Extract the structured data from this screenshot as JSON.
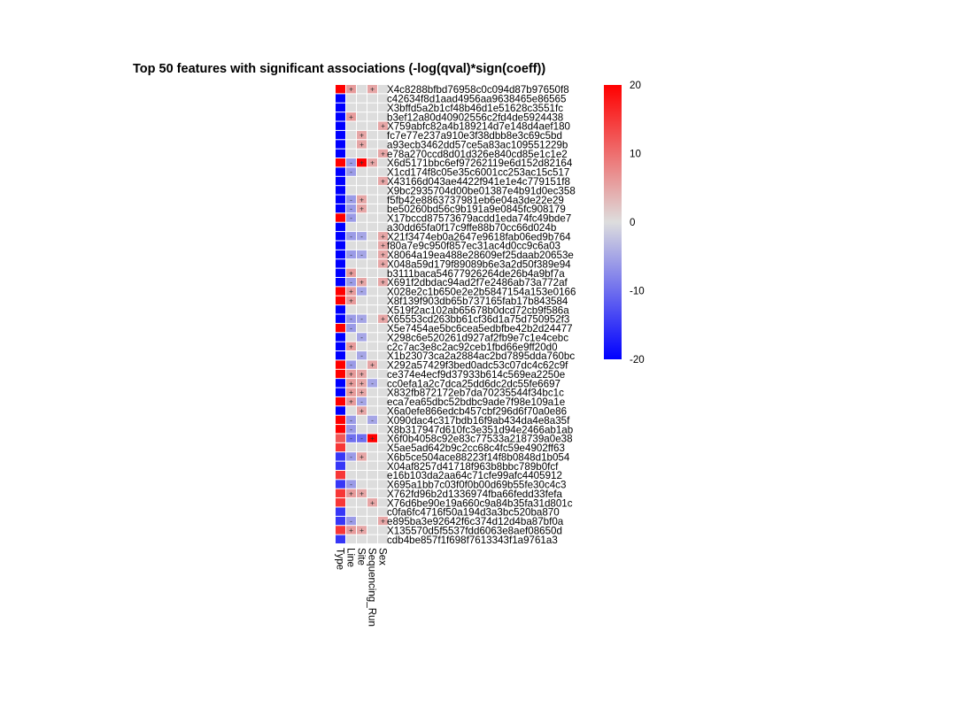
{
  "chart_data": {
    "type": "heatmap",
    "title": "Top 50 features with significant associations (-log(qval)*sign(coeff))",
    "columns": [
      "Type",
      "Line",
      "Site",
      "Sequencing_Run",
      "Sex"
    ],
    "rows": [
      "X4c8288bfbd76958c0c094d87b97650f8",
      "c42634f8d1aad4956aa9638465e86565",
      "X3bffd5a2b1cf48b46d1e51628c3551fc",
      "b3ef12a80d40902556c2fd4de5924438",
      "X759abfc82a4b189214d7e148d4aef180",
      "fc7e77e237a910e3f38dbb8e3c69c5bd",
      "a93ecb3462dd57ce5a83ac109551229b",
      "e78a270ccd8d01d326e840cd85e1c1e2",
      "X6d5171bbc6ef97262119e6d152d82164",
      "X1cd174f8c05e35c6001cc253ac15c517",
      "X43166d043ae4422f941e1e4c779151f8",
      "X9bc2935704d00be01387e4b91d0ec358",
      "f5fb42e8863737981eb6e04a3de22e29",
      "be50260bd56c9b191a9e0845fc908179",
      "X17bccd87573679acdd1eda74fc49bde7",
      "a30dd65fa0f17c9ffe88b70cc66d024b",
      "X21f3474eb0a2647e9618fab06ed9b764",
      "f80a7e9c950f857ec31ac4d0cc9c6a03",
      "X8064a19ea488e28609ef25daab20653e",
      "X048a59d179f89089b6e3a2d50f389e94",
      "b3111baca54677926264de26b4a9bf7a",
      "X691f2dbdac94ad2f7e2486ab73a772af",
      "X028e2c1b650e2e2b5847154a153e0166",
      "X8f139f903db65b737165fab17b843584",
      "X519f2ac102ab65678b0dcd72cb9f586a",
      "X65553cd263bb61cf36d1a75d750952f3",
      "X5e7454ae5bc6cea5edbfbe42b2d24477",
      "X298c6e520261d927af2fb9e7c1e4cebc",
      "c2c7ac3e8c2ac92ceb1fbd66e9ff20d0",
      "X1b23073ca2a2884ac2bd7895dda760bc",
      "X292a57429f3bed0adc53c07dc4c62c9f",
      "ce374e4ecf9d37933b614c569ea2250e",
      "cc0efa1a2c7dca25dd6dc2dc55fe6697",
      "X832fb872172eb7da70235544f34bc1c",
      "eca7ea65dbc52bdbc9ade7f98e109a1e",
      "X6a0efe866edcb457cbf296d6f70a0e86",
      "X090dac4c317bdb16f9ab434da4e8a35f",
      "X8b317947d610fc3e351d94e2466ab1ab",
      "X6f0b4058c92e83c77533a218739a0e38",
      "X5ae5ad642b9c2cc68c4fc59e4902ff63",
      "X6b5ce504ace88223f14f8b0848d1b054",
      "X04af8257d41718f963b8bbc789b0fcf",
      "e16b103da2aa64c71cfe99afc4405912",
      "X695a1bb7c03f0f0b00d69b55fe30c4c3",
      "X762fd96b2d1336974fba66fedd33fefa",
      "X76d6be90e19a660c9a84b35fa31d801c",
      "c0fa6fc4716f50a194d3a3bc520ba870",
      "e895ba3e92642f6c374d12d4ba87bf0a",
      "X135570d5f5537fdd6063e8aef08650d",
      "cdb4be857f1f698f7613343f1a9761a3"
    ],
    "values": [
      [
        20,
        6,
        0,
        5,
        0
      ],
      [
        -20,
        0,
        0,
        0,
        0
      ],
      [
        -20,
        0,
        0,
        0,
        0
      ],
      [
        -20,
        6,
        0,
        0,
        0
      ],
      [
        -20,
        0,
        0,
        0,
        5
      ],
      [
        -20,
        0,
        5,
        0,
        0
      ],
      [
        -20,
        0,
        5,
        0,
        0
      ],
      [
        -20,
        0,
        0,
        0,
        5
      ],
      [
        20,
        -6,
        20,
        5,
        0
      ],
      [
        -20,
        -6,
        0,
        0,
        0
      ],
      [
        -20,
        0,
        0,
        0,
        5
      ],
      [
        -20,
        0,
        0,
        0,
        0
      ],
      [
        -20,
        -6,
        5,
        0,
        0
      ],
      [
        -20,
        -6,
        5,
        0,
        0
      ],
      [
        20,
        -6,
        0,
        0,
        0
      ],
      [
        -20,
        0,
        0,
        0,
        0
      ],
      [
        -20,
        -6,
        -5,
        0,
        5
      ],
      [
        -20,
        0,
        0,
        0,
        5
      ],
      [
        -20,
        -6,
        -5,
        0,
        5
      ],
      [
        -20,
        0,
        0,
        0,
        5
      ],
      [
        -20,
        6,
        0,
        0,
        0
      ],
      [
        -20,
        -6,
        5,
        0,
        5
      ],
      [
        20,
        6,
        -5,
        0,
        0
      ],
      [
        20,
        6,
        0,
        0,
        0
      ],
      [
        -20,
        0,
        0,
        0,
        0
      ],
      [
        -20,
        -6,
        -5,
        0,
        5
      ],
      [
        20,
        -6,
        0,
        0,
        0
      ],
      [
        -20,
        0,
        -5,
        0,
        0
      ],
      [
        -20,
        6,
        0,
        0,
        0
      ],
      [
        -20,
        0,
        -5,
        0,
        0
      ],
      [
        20,
        -6,
        0,
        5,
        0
      ],
      [
        20,
        6,
        5,
        0,
        0
      ],
      [
        -20,
        6,
        5,
        -5,
        0
      ],
      [
        -20,
        6,
        5,
        0,
        0
      ],
      [
        20,
        6,
        -5,
        0,
        0
      ],
      [
        -20,
        0,
        5,
        0,
        0
      ],
      [
        20,
        -6,
        0,
        -5,
        0
      ],
      [
        20,
        -6,
        0,
        0,
        0
      ],
      [
        12,
        -10,
        -10,
        20,
        0
      ],
      [
        15,
        0,
        0,
        0,
        0
      ],
      [
        -15,
        -6,
        5,
        0,
        0
      ],
      [
        -15,
        0,
        0,
        0,
        0
      ],
      [
        15,
        0,
        0,
        0,
        0
      ],
      [
        -15,
        -6,
        0,
        0,
        0
      ],
      [
        15,
        6,
        5,
        0,
        0
      ],
      [
        15,
        0,
        0,
        5,
        0
      ],
      [
        -15,
        0,
        0,
        0,
        0
      ],
      [
        -15,
        -6,
        0,
        0,
        5
      ],
      [
        15,
        6,
        5,
        0,
        0
      ],
      [
        -15,
        0,
        0,
        0,
        0
      ]
    ],
    "colorbar": {
      "min": -20,
      "max": 20,
      "ticks": [
        20,
        10,
        0,
        -10,
        -20
      ],
      "colors": [
        "#0000ff",
        "#dddddd",
        "#ff0000"
      ]
    },
    "grid": false,
    "legend": "right"
  }
}
